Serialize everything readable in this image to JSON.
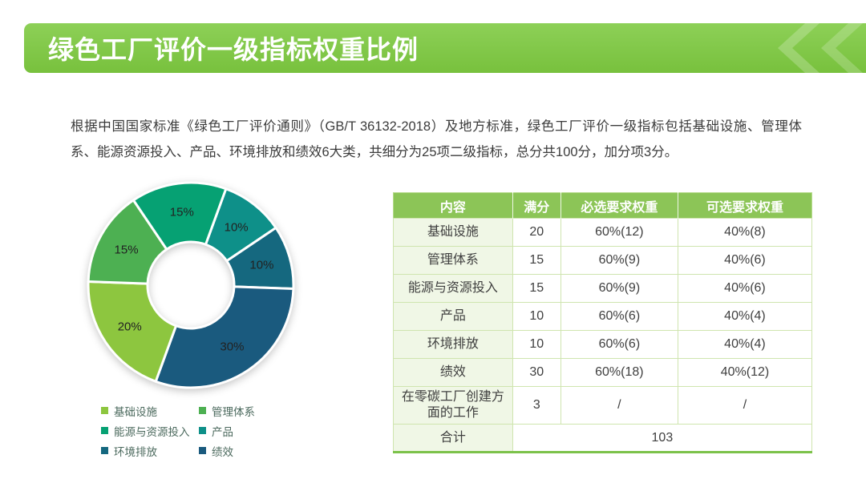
{
  "header": {
    "title": "绿色工厂评价一级指标权重比例"
  },
  "intro": {
    "text": "根据中国国家标准《绿色工厂评价通则》（GB/T 36132-2018）及地方标准，绿色工厂评价一级指标包括基础设施、管理体系、能源资源投入、产品、环境排放和绩效6大类，共细分为25项二级指标，总分共100分，加分项3分。"
  },
  "colors": {
    "banner_green_top": "#8dd057",
    "banner_green_bottom": "#78c13d",
    "table_header_green": "#8cc557",
    "table_border_green": "#cfe5af",
    "table_first_col_tint": "#f0f7e6"
  },
  "chart_data": {
    "type": "pie",
    "donut": true,
    "start_angle_deg_clockwise_from_12": 20,
    "labels_format": "percent",
    "slices": [
      {
        "label": "产品",
        "value": 10,
        "color": "#0E9089"
      },
      {
        "label": "环境排放",
        "value": 10,
        "color": "#15687F"
      },
      {
        "label": "绩效",
        "value": 30,
        "color": "#1A5A7E"
      },
      {
        "label": "基础设施",
        "value": 20,
        "color": "#8DC63F"
      },
      {
        "label": "管理体系",
        "value": 15,
        "color": "#4DB052"
      },
      {
        "label": "能源与资源投入",
        "value": 15,
        "color": "#06A173"
      }
    ]
  },
  "legend": {
    "items": [
      {
        "label": "基础设施",
        "color": "#8DC63F"
      },
      {
        "label": "管理体系",
        "color": "#4DB052"
      },
      {
        "label": "能源与资源投入",
        "color": "#06A173"
      },
      {
        "label": "产品",
        "color": "#0E9089"
      },
      {
        "label": "环境排放",
        "color": "#15687F"
      },
      {
        "label": "绩效",
        "color": "#1A5A7E"
      }
    ]
  },
  "table": {
    "headers": [
      "内容",
      "满分",
      "必选要求权重",
      "可选要求权重"
    ],
    "col_widths_pct": [
      28.5,
      11.5,
      28,
      32
    ],
    "rows": [
      [
        "基础设施",
        "20",
        "60%(12)",
        "40%(8)"
      ],
      [
        "管理体系",
        "15",
        "60%(9)",
        "40%(6)"
      ],
      [
        "能源与资源投入",
        "15",
        "60%(9)",
        "40%(6)"
      ],
      [
        "产品",
        "10",
        "60%(6)",
        "40%(4)"
      ],
      [
        "环境排放",
        "10",
        "60%(6)",
        "40%(4)"
      ],
      [
        "绩效",
        "30",
        "60%(18)",
        "40%(12)"
      ],
      [
        "在零碳工厂创建方面的工作",
        "3",
        "/",
        "/"
      ]
    ],
    "footer": {
      "label": "合计",
      "value": "103"
    }
  }
}
